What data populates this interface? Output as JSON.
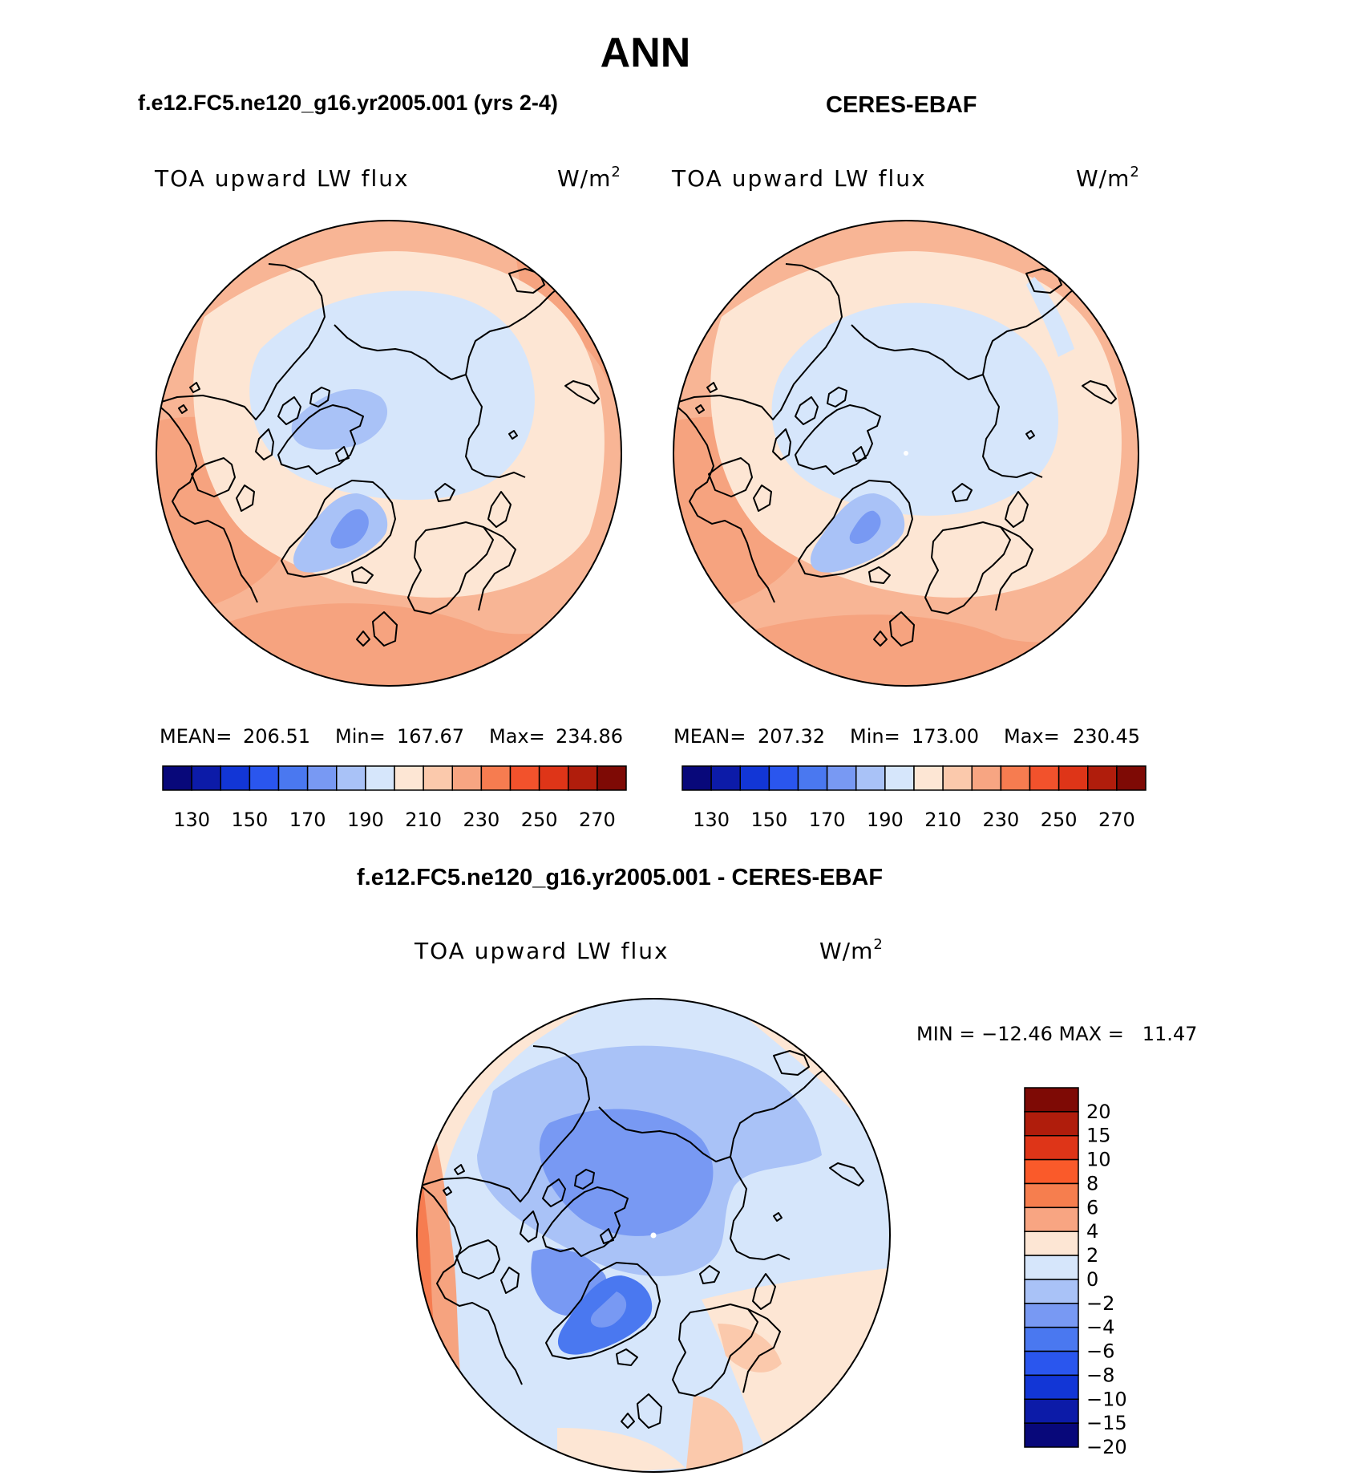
{
  "title": "ANN",
  "panel_model": {
    "title": "f.e12.FC5.ne120_g16.yr2005.001 (yrs 2-4)",
    "variable": "TOA upward LW flux",
    "units_base": "W/m",
    "units_sup": "2",
    "stats": {
      "mean_label": "MEAN=",
      "mean": "206.51",
      "min_label": "Min=",
      "min": "167.67",
      "max_label": "Max=",
      "max": "234.86"
    }
  },
  "panel_obs": {
    "title": "CERES-EBAF",
    "variable": "TOA upward LW flux",
    "units_base": "W/m",
    "units_sup": "2",
    "stats": {
      "mean_label": "MEAN=",
      "mean": "207.32",
      "min_label": "Min=",
      "min": "173.00",
      "max_label": "Max=",
      "max": "230.45"
    }
  },
  "panel_diff": {
    "title": "f.e12.FC5.ne120_g16.yr2005.001 - CERES-EBAF",
    "variable": "TOA upward LW flux",
    "units_base": "W/m",
    "units_sup": "2",
    "stats_text": "MIN = −12.46 MAX =   11.47"
  },
  "colorbar_abs": {
    "colors": [
      "#08087a",
      "#0c1ba8",
      "#1236d6",
      "#2a56ee",
      "#4a78f0",
      "#7899f3",
      "#a9c2f7",
      "#d6e6fb",
      "#fde6d4",
      "#fbc9ac",
      "#f7a582",
      "#f67c50",
      "#f2522c",
      "#de3518",
      "#b01d0c",
      "#7e0a05"
    ],
    "tick_labels": [
      "130",
      "150",
      "170",
      "190",
      "210",
      "230",
      "250",
      "270"
    ]
  },
  "colorbar_diff": {
    "colors": [
      "#7e0a05",
      "#b01d0c",
      "#de3518",
      "#fa5a2a",
      "#f67e4e",
      "#f8a582",
      "#fde6d4",
      "#d6e6fb",
      "#a9c2f7",
      "#7899f3",
      "#4a78f0",
      "#2a56ee",
      "#1236d6",
      "#0c1ba8",
      "#08087a"
    ],
    "tick_labels": [
      "20",
      "15",
      "10",
      "8",
      "6",
      "4",
      "2",
      "0",
      "−2",
      "−4",
      "−6",
      "−8",
      "−10",
      "−15",
      "−20"
    ]
  }
}
